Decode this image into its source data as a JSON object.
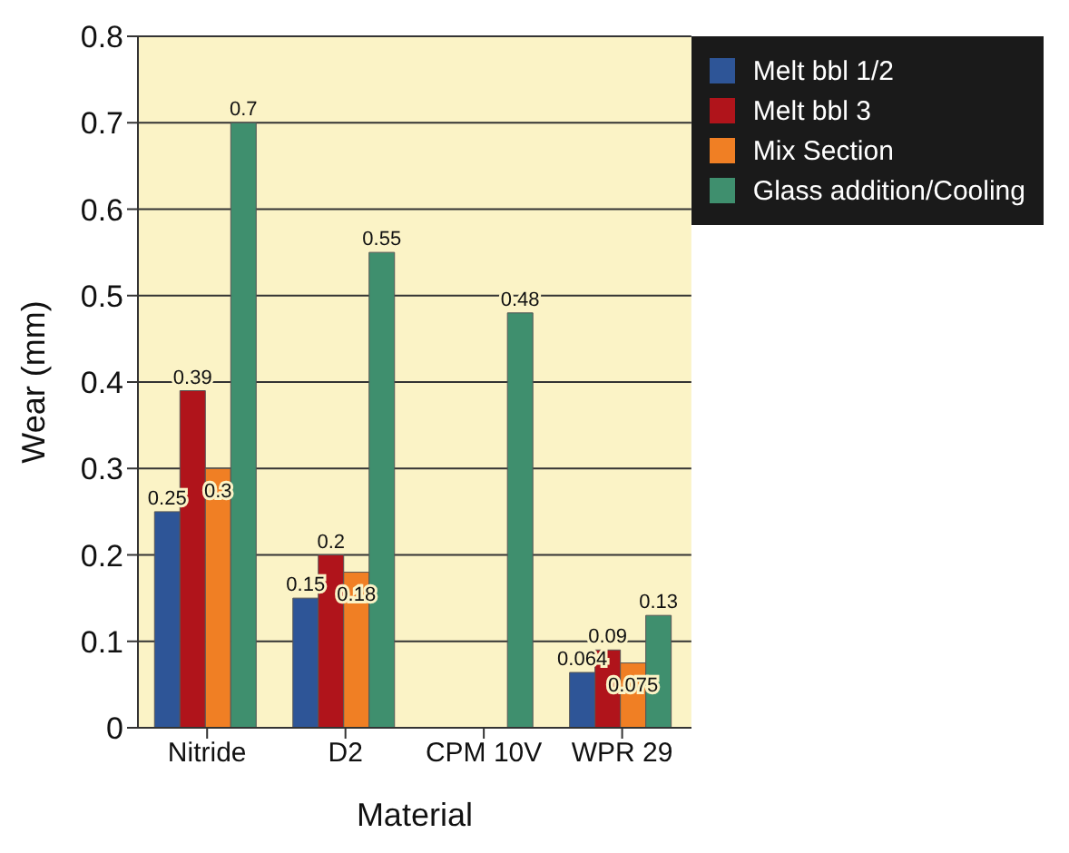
{
  "chart_data": {
    "type": "bar",
    "xlabel": "Material",
    "ylabel": "Wear (mm)",
    "categories": [
      "Nitride",
      "D2",
      "CPM 10V",
      "WPR 29"
    ],
    "series": [
      {
        "name": "Melt bbl 1/2",
        "color": "#2e5597",
        "values": [
          0.25,
          0.15,
          null,
          0.064
        ]
      },
      {
        "name": "Melt bbl 3",
        "color": "#b0141b",
        "values": [
          0.39,
          0.2,
          null,
          0.09
        ]
      },
      {
        "name": "Mix Section",
        "color": "#f07f24",
        "values": [
          0.3,
          0.18,
          null,
          0.075
        ]
      },
      {
        "name": "Glass addition/Cooling",
        "color": "#3f8f6e",
        "values": [
          0.7,
          0.55,
          0.48,
          0.13
        ]
      }
    ],
    "ylim": [
      0,
      0.8
    ],
    "yticks": [
      0,
      0.1,
      0.2,
      0.3,
      0.4,
      0.5,
      0.6,
      0.7,
      0.8
    ],
    "grid": "y",
    "legend": "top right",
    "data_labels": true
  }
}
